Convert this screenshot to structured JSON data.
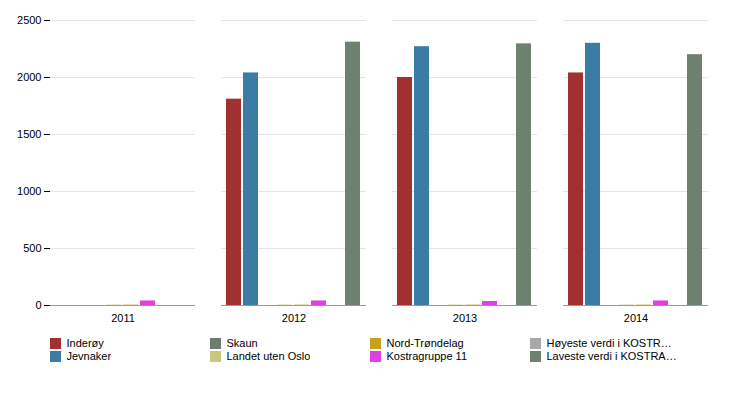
{
  "chart_data": {
    "type": "bar",
    "categories": [
      2011,
      2012,
      2013,
      2014
    ],
    "series": [
      {
        "name": "Inderøy",
        "color": "#a33030",
        "values": [
          0,
          1810,
          2000,
          2040
        ]
      },
      {
        "name": "Jevnaker",
        "color": "#3a7ca5",
        "values": [
          0,
          2040,
          2270,
          2300
        ]
      },
      {
        "name": "Skaun",
        "color": "#6b7d6b",
        "values": [
          0,
          0,
          0,
          0
        ]
      },
      {
        "name": "Landet uten Oslo",
        "color": "#c8c87a",
        "values": [
          3,
          3,
          3,
          3
        ]
      },
      {
        "name": "Nord-Trøndelag",
        "color": "#c8a020",
        "values": [
          3,
          3,
          3,
          3
        ]
      },
      {
        "name": "Kostragruppe 11",
        "color": "#e040e0",
        "values": [
          40,
          40,
          35,
          40
        ]
      },
      {
        "name": "Høyeste verdi i KOSTRA-gruppen",
        "color": "#a8a8a8",
        "values": [
          0,
          0,
          0,
          0
        ]
      },
      {
        "name": "Laveste verdi i KOSTRA-gruppen",
        "color": "#6e8070",
        "values": [
          0,
          2310,
          2295,
          2200
        ]
      }
    ],
    "ylim": [
      0,
      2500
    ],
    "yticks": [
      0,
      500,
      1000,
      1500,
      2000,
      2500
    ],
    "grid": true,
    "legend": "bottom"
  }
}
